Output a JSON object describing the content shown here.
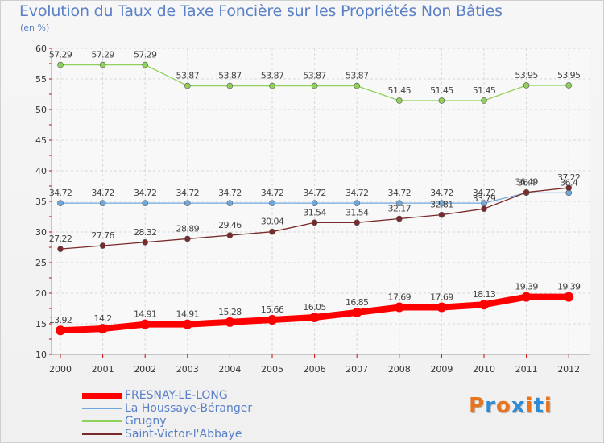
{
  "chart_data": {
    "type": "line",
    "title": "Evolution du Taux de Taxe Foncière sur les Propriétés Non Bâties",
    "unit_label": "(en %)",
    "x": [
      "2000",
      "2001",
      "2002",
      "2003",
      "2004",
      "2005",
      "2006",
      "2007",
      "2008",
      "2009",
      "2010",
      "2011",
      "2012"
    ],
    "ylim": [
      10,
      60
    ],
    "yticks": [
      10,
      15,
      20,
      25,
      30,
      35,
      40,
      45,
      50,
      55,
      60
    ],
    "grid": true,
    "legend_position": "bottom-left",
    "series": [
      {
        "name": "FRESNAY-LE-LONG",
        "color": "#ff0000",
        "values": [
          13.92,
          14.2,
          14.91,
          14.91,
          15.28,
          15.66,
          16.05,
          16.85,
          17.69,
          17.69,
          18.13,
          19.39,
          19.39
        ],
        "labels": [
          "13.92",
          "14.2",
          "14.91",
          "14.91",
          "15.28",
          "15.66",
          "16.05",
          "16.85",
          "17.69",
          "17.69",
          "18.13",
          "19.39",
          "19.39"
        ]
      },
      {
        "name": "La Houssaye-Béranger",
        "color": "#6fa8dc",
        "values": [
          34.72,
          34.72,
          34.72,
          34.72,
          34.72,
          34.72,
          34.72,
          34.72,
          34.72,
          34.72,
          34.72,
          36.4,
          36.4
        ],
        "labels": [
          "34.72",
          "34.72",
          "34.72",
          "34.72",
          "34.72",
          "34.72",
          "34.72",
          "34.72",
          "34.72",
          "34.72",
          "34.72",
          "36.4",
          "36.4"
        ]
      },
      {
        "name": "Grugny",
        "color": "#8fd15a",
        "values": [
          57.29,
          57.29,
          57.29,
          53.87,
          53.87,
          53.87,
          53.87,
          53.87,
          51.45,
          51.45,
          51.45,
          53.95,
          53.95
        ],
        "labels": [
          "57.29",
          "57.29",
          "57.29",
          "53.87",
          "53.87",
          "53.87",
          "53.87",
          "53.87",
          "51.45",
          "51.45",
          "51.45",
          "53.95",
          "53.95"
        ]
      },
      {
        "name": "Saint-Victor-l'Abbaye",
        "color": "#7a2a2a",
        "values": [
          27.22,
          27.76,
          28.32,
          28.89,
          29.46,
          30.04,
          31.54,
          31.54,
          32.17,
          32.81,
          33.79,
          36.49,
          37.22
        ],
        "labels": [
          "27.22",
          "27.76",
          "28.32",
          "28.89",
          "29.46",
          "30.04",
          "31.54",
          "31.54",
          "32.17",
          "32.81",
          "33.79",
          "36.49",
          "37.22"
        ]
      }
    ]
  },
  "logo": {
    "text": "Proxiti",
    "colors": [
      "#e8741e",
      "#2e8bd6",
      "#e8741e",
      "#2e8bd6",
      "#e8741e",
      "#2e8bd6",
      "#e8741e"
    ]
  }
}
